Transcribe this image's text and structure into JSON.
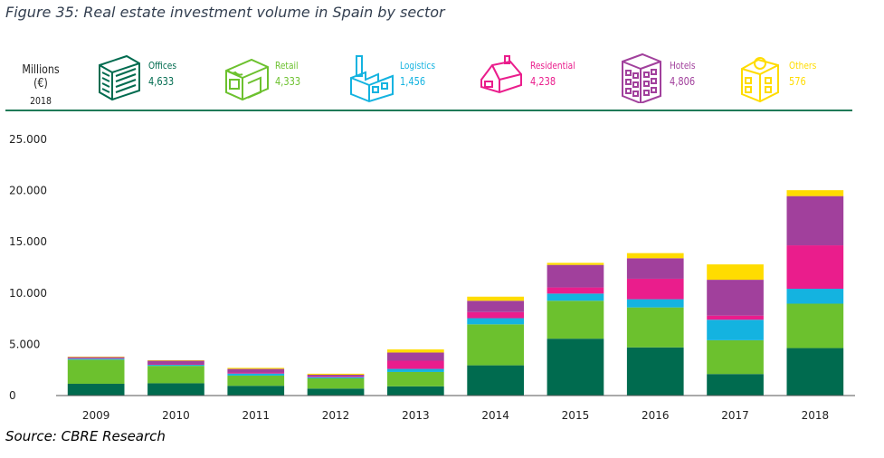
{
  "figure_title": "Figure 35: Real estate investment volume in Spain by sector",
  "unit_label": "Millions (€)",
  "unit_year": "2018",
  "legend": [
    {
      "name": "Offices",
      "value": "4,633",
      "color": "#006b4f",
      "icon": "office-building-icon"
    },
    {
      "name": "Retail",
      "value": "4,333",
      "color": "#6cc12e",
      "icon": "retail-store-icon"
    },
    {
      "name": "Logistics",
      "value": "1,456",
      "color": "#14b3e0",
      "icon": "factory-icon"
    },
    {
      "name": "Residential",
      "value": "4,238",
      "color": "#ea1d8c",
      "icon": "house-icon"
    },
    {
      "name": "Hotels",
      "value": "4,806",
      "color": "#a1409c",
      "icon": "hotel-building-icon"
    },
    {
      "name": "Others",
      "value": "576",
      "color": "#ffdc00",
      "icon": "others-building-icon"
    }
  ],
  "source": "Source: CBRE Research",
  "chart_data": {
    "type": "bar",
    "stacked": true,
    "categories": [
      "2009",
      "2010",
      "2011",
      "2012",
      "2013",
      "2014",
      "2015",
      "2016",
      "2017",
      "2018"
    ],
    "series": [
      {
        "name": "Offices",
        "color": "#006b4f",
        "values": [
          1150,
          1200,
          950,
          680,
          900,
          2950,
          5550,
          4700,
          2100,
          4633
        ]
      },
      {
        "name": "Retail",
        "color": "#6cc12e",
        "values": [
          2350,
          1700,
          1000,
          1000,
          1400,
          4000,
          3700,
          3900,
          3300,
          4333
        ]
      },
      {
        "name": "Logistics",
        "color": "#14b3e0",
        "values": [
          100,
          100,
          200,
          100,
          300,
          600,
          700,
          800,
          2000,
          1456
        ]
      },
      {
        "name": "Residential",
        "color": "#ea1d8c",
        "values": [
          50,
          50,
          100,
          50,
          800,
          600,
          600,
          2000,
          400,
          4238
        ]
      },
      {
        "name": "Hotels",
        "color": "#a1409c",
        "values": [
          100,
          350,
          350,
          200,
          800,
          1100,
          2200,
          2000,
          3500,
          4806
        ]
      },
      {
        "name": "Others",
        "color": "#ffdc00",
        "values": [
          50,
          50,
          100,
          100,
          300,
          400,
          200,
          500,
          1500,
          576
        ]
      }
    ],
    "yticks": [
      "0",
      "5.000",
      "10.000",
      "15.000",
      "20.000",
      "25.000"
    ],
    "ylim": [
      0,
      25000
    ],
    "grid": false
  }
}
